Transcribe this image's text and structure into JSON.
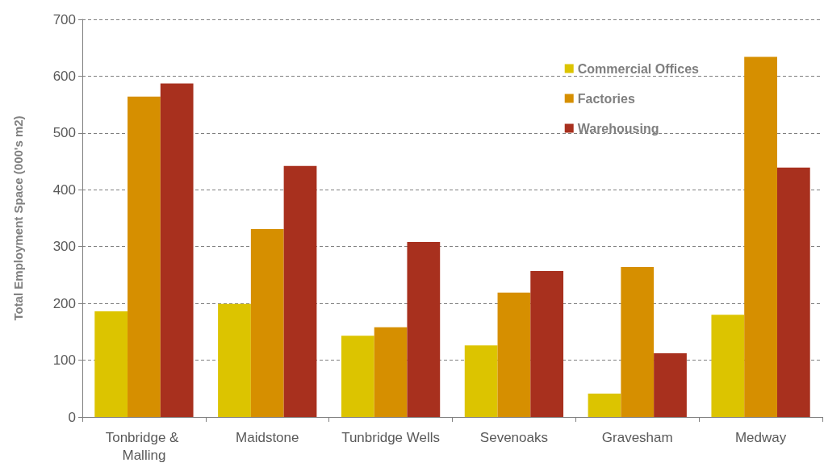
{
  "chart_data": {
    "type": "bar",
    "ylabel": "Total Employment Space (000's m2)",
    "categories": [
      "Tonbridge & Malling",
      "Maidstone",
      "Tunbridge Wells",
      "Sevenoaks",
      "Gravesham",
      "Medway"
    ],
    "series": [
      {
        "name": "Commercial Offices",
        "color": "#dcc400",
        "values": [
          186,
          199,
          143,
          126,
          41,
          180
        ]
      },
      {
        "name": "Factories",
        "color": "#d68f00",
        "values": [
          564,
          331,
          158,
          219,
          264,
          634
        ]
      },
      {
        "name": "Warehousing",
        "color": "#a8301e",
        "values": [
          587,
          442,
          308,
          257,
          112,
          439
        ]
      }
    ],
    "ylim": [
      0,
      700
    ],
    "yticks": [
      0,
      100,
      200,
      300,
      400,
      500,
      600,
      700
    ],
    "grid": "y",
    "legend": "top right"
  }
}
